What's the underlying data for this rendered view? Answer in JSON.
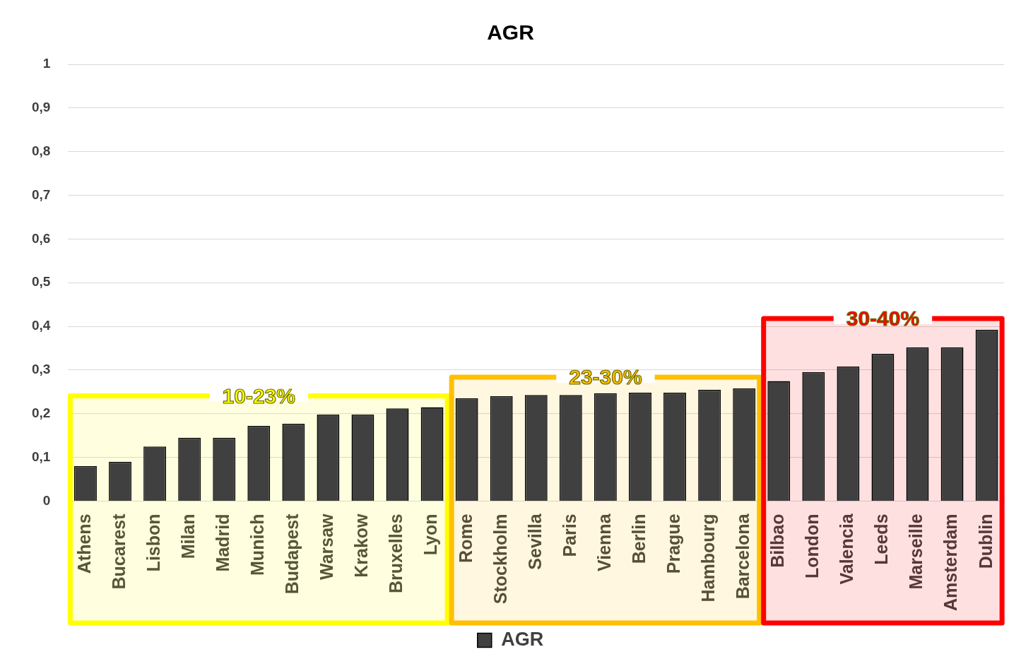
{
  "chart_data": {
    "type": "bar",
    "title": "AGR",
    "categories": [
      "Athens",
      "Bucarest",
      "Lisbon",
      "Milan",
      "Madrid",
      "Munich",
      "Budapest",
      "Warsaw",
      "Krakow",
      "Bruxelles",
      "Lyon",
      "Rome",
      "Stockholm",
      "Sevilla",
      "Paris",
      "Vienna",
      "Berlin",
      "Prague",
      "Hambourg",
      "Barcelona",
      "Bilbao",
      "London",
      "Valencia",
      "Leeds",
      "Marseille",
      "Amsterdam",
      "Dublin"
    ],
    "series": [
      {
        "name": "AGR",
        "color": "#404040",
        "values": [
          0.08,
          0.09,
          0.125,
          0.145,
          0.145,
          0.172,
          0.177,
          0.198,
          0.198,
          0.212,
          0.215,
          0.235,
          0.24,
          0.243,
          0.243,
          0.247,
          0.248,
          0.248,
          0.255,
          0.258,
          0.275,
          0.295,
          0.308,
          0.337,
          0.352,
          0.352,
          0.392
        ]
      }
    ],
    "ylim": [
      0,
      1
    ],
    "yticks": [
      0,
      {
        "value": 0.1,
        "label": "0,1"
      },
      {
        "value": 0.2,
        "label": "0,2"
      },
      {
        "value": 0.3,
        "label": "0,3"
      },
      {
        "value": 0.4,
        "label": "0,4"
      },
      {
        "value": 0.5,
        "label": "0,5"
      },
      {
        "value": 0.6,
        "label": "0,6"
      },
      {
        "value": 0.7,
        "label": "0,7"
      },
      {
        "value": 0.8,
        "label": "0,8"
      },
      {
        "value": 0.9,
        "label": "0,9"
      },
      1
    ],
    "grid": "y",
    "legend": "bottom",
    "bands": [
      {
        "axis": "x",
        "from": "Athens",
        "to": "Lyon",
        "label": "10-23%",
        "color": "#ffff00"
      },
      {
        "axis": "x",
        "from": "Rome",
        "to": "Barcelona",
        "label": "23-30%",
        "color": "#ffc000"
      },
      {
        "axis": "x",
        "from": "Bilbao",
        "to": "Dublin",
        "label": "30-40%",
        "color": "#ff0000"
      }
    ]
  }
}
